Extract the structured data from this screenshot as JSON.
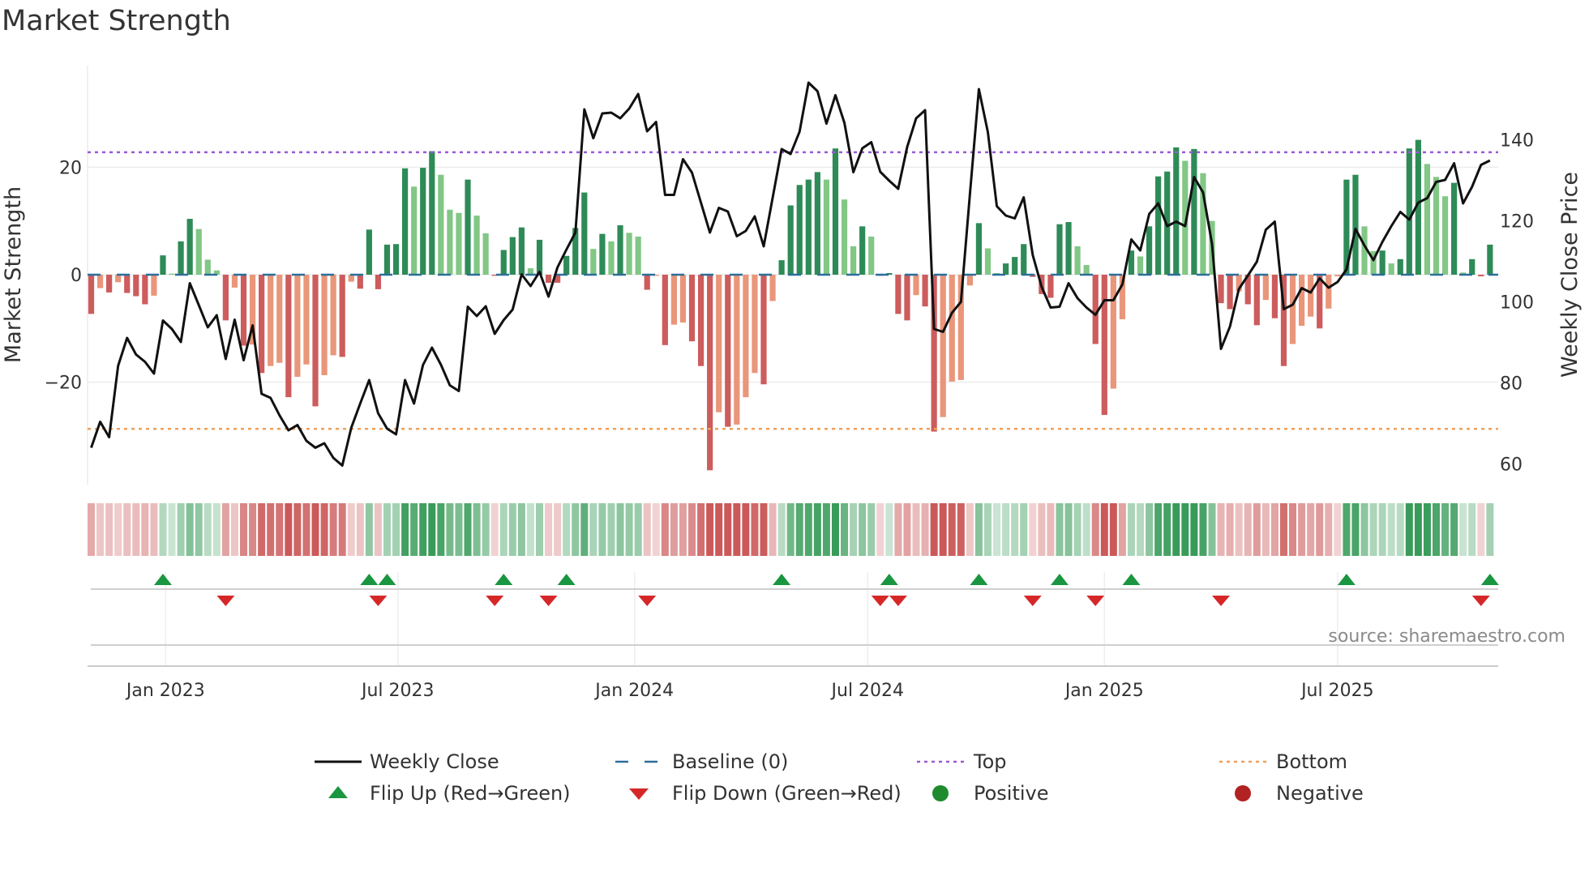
{
  "title": "Market Strength",
  "source": "source: sharemaestro.com",
  "colors": {
    "pos_strong": "#2e8b57",
    "pos_weak": "#82c785",
    "neg_strong": "#cd5c5c",
    "neg_weak": "#e9967a",
    "price": "#111111",
    "baseline": "#2c6e9b",
    "top": "#9b59d6",
    "bottom": "#f0a05a",
    "flip_up": "#1a9641",
    "flip_down": "#d62728",
    "positive": "#1f8b2c",
    "negative": "#b22222"
  },
  "chart_data": {
    "type": "bar",
    "title": "Market Strength",
    "ylabel": "Market Strength",
    "y2label": "Weekly Close Price",
    "ylim": [
      -37,
      40
    ],
    "y2lim": [
      52,
      160
    ],
    "yticks": [
      {
        "v": 20,
        "label": "20"
      },
      {
        "v": 0,
        "label": "0"
      },
      {
        "v": -20,
        "label": "−20"
      }
    ],
    "y2ticks": [
      {
        "v": 140,
        "label": "140"
      },
      {
        "v": 120,
        "label": "120"
      },
      {
        "v": 100,
        "label": "100"
      },
      {
        "v": 80,
        "label": "80"
      },
      {
        "v": 60,
        "label": "60"
      }
    ],
    "xticks": [
      {
        "week": 8.3,
        "label": "Jan 2023"
      },
      {
        "week": 34.2,
        "label": "Jul 2023"
      },
      {
        "week": 60.6,
        "label": "Jan 2024"
      },
      {
        "week": 86.6,
        "label": "Jul 2024"
      },
      {
        "week": 113,
        "label": "Jan 2025"
      },
      {
        "week": 139,
        "label": "Jul 2025"
      }
    ],
    "top_level": 22.8,
    "bottom_level": -28.7,
    "baseline": 0,
    "strength": [
      -7.3,
      -2.5,
      -3.3,
      -1.4,
      -3.4,
      -4,
      -5.5,
      -3.9,
      3.6,
      0.2,
      6.2,
      10.4,
      8.5,
      2.8,
      0.8,
      -8.5,
      -2.4,
      -13.2,
      -13,
      -18.3,
      -17,
      -16.4,
      -22.8,
      -19,
      -16.7,
      -24.5,
      -18.7,
      -15,
      -15.3,
      -1.3,
      -2.6,
      8.4,
      -2.7,
      5.6,
      5.7,
      19.8,
      16.4,
      19.9,
      23,
      18.6,
      12.1,
      11.5,
      17.7,
      11,
      7.7,
      -0.2,
      4.6,
      7,
      8.8,
      1.2,
      6.5,
      -1.5,
      -1.5,
      3.5,
      8.7,
      15.3,
      4.8,
      7.6,
      6.2,
      9.2,
      7.8,
      7.1,
      -2.8,
      -0.2,
      -13.1,
      -9.3,
      -8.9,
      -12.4,
      -17,
      -36.4,
      -25.6,
      -28.3,
      -27.9,
      -22.8,
      -18.3,
      -20.4,
      -4.9,
      2.7,
      12.9,
      16.7,
      17.7,
      19.1,
      17.7,
      23.5,
      14,
      5.3,
      9,
      7.1,
      -0.2,
      0.3,
      -7.3,
      -8.5,
      -3.8,
      -5.9,
      -29.2,
      -26.5,
      -19.9,
      -19.6,
      -2,
      9.6,
      4.9,
      0.3,
      2.1,
      3.3,
      5.7,
      -0.4,
      -3.6,
      -4.3,
      9.4,
      9.8,
      5.3,
      1.8,
      -12.9,
      -26.1,
      -21.2,
      -8.3,
      4.5,
      3.4,
      9,
      18.3,
      19.2,
      23.7,
      21.2,
      23.4,
      18.9,
      10,
      -5.3,
      -6.4,
      -3.1,
      -5.5,
      -9.4,
      -4.7,
      -8.1,
      -17,
      -12.9,
      -9.5,
      -7.8,
      -10,
      -6.3,
      -0.3,
      17.7,
      18.6,
      9,
      4.4,
      4.5,
      2.1,
      2.9,
      23.5,
      25.1,
      20.6,
      18.2,
      14.6,
      17.1,
      0.4,
      2.9,
      -0.3,
      5.6
    ],
    "weekly_close": [
      64,
      70.4,
      66.6,
      84.2,
      91.1,
      87,
      85.2,
      82.3,
      95.4,
      93.3,
      90.1,
      104.6,
      99.2,
      93.7,
      96.7,
      85.9,
      95.6,
      85.6,
      94.2,
      77.3,
      76.3,
      72,
      68.3,
      69.6,
      65.7,
      64,
      65.1,
      61.5,
      59.6,
      68.9,
      74.9,
      80.7,
      72.5,
      68.7,
      67.3,
      80.7,
      74.9,
      84.4,
      88.7,
      84.5,
      79.4,
      78,
      98.8,
      96.5,
      98.9,
      92.1,
      95.5,
      98.1,
      106.8,
      103.9,
      107.4,
      101.3,
      108.5,
      112.9,
      117.1,
      147.5,
      140.4,
      146.5,
      146.7,
      145.3,
      147.7,
      151.3,
      142.1,
      144.4,
      126.4,
      126.4,
      135.2,
      131.9,
      124.5,
      117.1,
      123.2,
      122.3,
      116.2,
      117.5,
      121.1,
      113.7,
      125.7,
      137.7,
      136.5,
      142,
      154.1,
      152,
      144,
      151,
      144.2,
      132,
      137.9,
      139.4,
      132.1,
      129.9,
      127.9,
      138.2,
      145.3,
      147.3,
      93.3,
      92.6,
      97.3,
      100,
      126.6,
      152.5,
      141.9,
      123.6,
      121.3,
      120.6,
      125.8,
      111.6,
      103.7,
      98.6,
      98.8,
      104.6,
      100.9,
      98.6,
      96.8,
      100.4,
      100.4,
      104.3,
      115.4,
      112.7,
      121.7,
      124.3,
      118.7,
      119.8,
      118.7,
      130.8,
      127,
      114.3,
      88.4,
      93.9,
      103.2,
      106.5,
      109.9,
      117.8,
      119.8,
      98.2,
      99.3,
      103.4,
      102.3,
      105.8,
      103.5,
      104.9,
      108,
      118,
      113.9,
      110.3,
      114.8,
      118.7,
      122.2,
      120.3,
      124.5,
      125.6,
      129.6,
      130.1,
      134.2,
      124.3,
      128.4,
      133.8,
      134.9
    ],
    "flip_up_weeks": [
      8,
      31,
      33,
      46,
      53,
      77,
      89,
      99,
      108,
      116,
      140,
      156
    ],
    "flip_down_weeks": [
      15,
      32,
      45,
      51,
      62,
      88,
      90,
      105,
      112,
      126,
      155
    ]
  },
  "legend": [
    {
      "key": "close",
      "label": "Weekly Close"
    },
    {
      "key": "baseline",
      "label": "Baseline (0)"
    },
    {
      "key": "top",
      "label": "Top"
    },
    {
      "key": "bottom",
      "label": "Bottom"
    },
    {
      "key": "flip_up",
      "label": "Flip Up (Red→Green)"
    },
    {
      "key": "flip_down",
      "label": "Flip Down (Green→Red)"
    },
    {
      "key": "positive",
      "label": "Positive"
    },
    {
      "key": "negative",
      "label": "Negative"
    }
  ]
}
